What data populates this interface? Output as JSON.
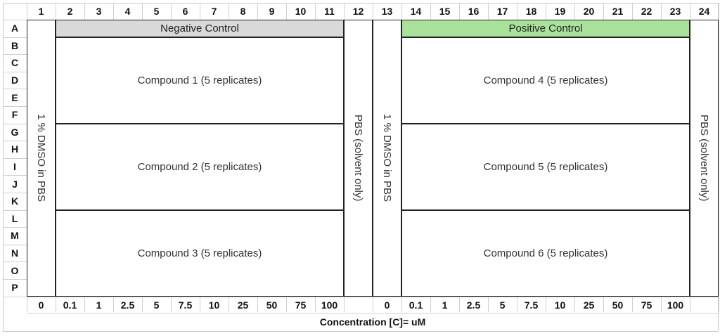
{
  "columns": [
    "1",
    "2",
    "3",
    "4",
    "5",
    "6",
    "7",
    "8",
    "9",
    "10",
    "11",
    "12",
    "13",
    "14",
    "15",
    "16",
    "17",
    "18",
    "19",
    "20",
    "21",
    "22",
    "23",
    "24"
  ],
  "rows": [
    "A",
    "B",
    "C",
    "D",
    "E",
    "F",
    "G",
    "H",
    "I",
    "J",
    "K",
    "L",
    "M",
    "N",
    "O",
    "P"
  ],
  "left_block": {
    "control_label": "Negative Control",
    "control_color": "#d9d9d9",
    "side_left": "1 % DMSO in PBS",
    "side_right": "PBS (solvent only)",
    "compounds": [
      "Compound 1 (5 replicates)",
      "Compound 2 (5 replicates)",
      "Compound 3 (5 replicates)"
    ],
    "concentrations": [
      "0",
      "0.1",
      "1",
      "2.5",
      "5",
      "7.5",
      "10",
      "25",
      "50",
      "75",
      "100"
    ]
  },
  "right_block": {
    "control_label": "Positive Control",
    "control_color": "#a9e29a",
    "side_left": "1 % DMSO in PBS",
    "side_right": "PBS (solvent only)",
    "compounds": [
      "Compound 4 (5 replicates)",
      "Compound 5 (5 replicates)",
      "Compound 6 (5 replicates)"
    ],
    "concentrations": [
      "0",
      "0.1",
      "1",
      "2.5",
      "5",
      "7.5",
      "10",
      "25",
      "50",
      "75",
      "100"
    ]
  },
  "axis_title": "Concentration [C]= uM"
}
